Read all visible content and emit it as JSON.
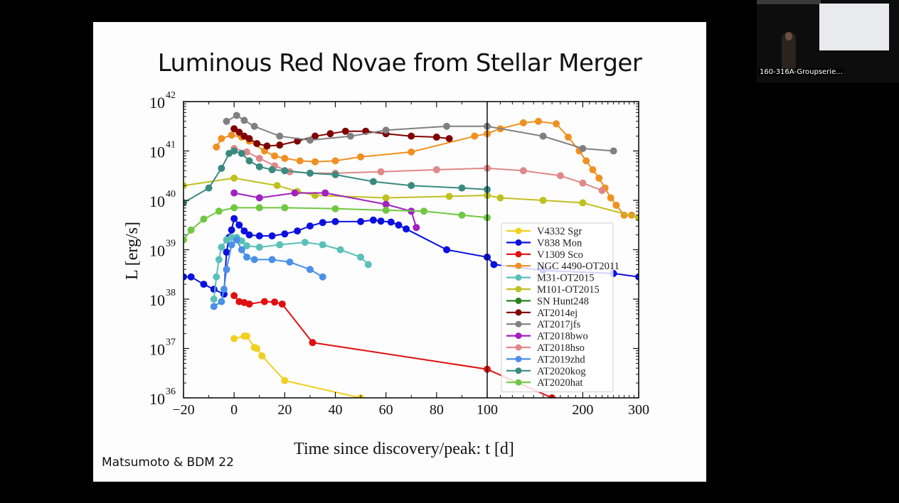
{
  "slide": {
    "title": "Luminous Red Novae from Stellar Merger",
    "credit": "Matsumoto & BDM 22"
  },
  "video_thumbnail": {
    "label": "160-316A-Groupserie..."
  },
  "chart_data": {
    "type": "line",
    "title": "Luminous Red Novae from Stellar Merger",
    "xlabel": "Time since discovery/peak: t [d]",
    "ylabel": "L [erg/s]",
    "xscale": "linear from -20 to 100, log from 100 to 300",
    "yscale": "log",
    "xlim": [
      -20,
      300
    ],
    "ylim": [
      1e+36,
      1e+42
    ],
    "x_ticks": [
      -20,
      0,
      20,
      40,
      60,
      80,
      100,
      200,
      300
    ],
    "y_ticks": [
      "10^36",
      "10^37",
      "10^38",
      "10^39",
      "10^40",
      "10^41",
      "10^42"
    ],
    "y_tick_exponents": [
      36,
      37,
      38,
      39,
      40,
      41,
      42
    ],
    "vertical_line_x": 100,
    "legend_position": "lower right",
    "series": [
      {
        "name": "V4332 Sgr",
        "color": "#f0d020",
        "points": [
          [
            0,
            37.2
          ],
          [
            4,
            37.25
          ],
          [
            5,
            37.25
          ],
          [
            8,
            37.02
          ],
          [
            9,
            37.0
          ],
          [
            11,
            36.85
          ],
          [
            20,
            36.35
          ],
          [
            50,
            36.0
          ]
        ]
      },
      {
        "name": "V838 Mon",
        "color": "#0a10e0",
        "points": [
          [
            -20,
            38.45
          ],
          [
            -17,
            38.45
          ],
          [
            -12,
            38.3
          ],
          [
            -8,
            38.2
          ],
          [
            -4,
            38.1
          ],
          [
            -3,
            38.95
          ],
          [
            -2,
            39.25
          ],
          [
            -1,
            39.4
          ],
          [
            0,
            39.63
          ],
          [
            2,
            39.5
          ],
          [
            4,
            39.38
          ],
          [
            6,
            39.3
          ],
          [
            10,
            39.28
          ],
          [
            15,
            39.28
          ],
          [
            20,
            39.32
          ],
          [
            25,
            39.38
          ],
          [
            30,
            39.48
          ],
          [
            35,
            39.55
          ],
          [
            40,
            39.57
          ],
          [
            50,
            39.57
          ],
          [
            55,
            39.6
          ],
          [
            58,
            39.58
          ],
          [
            62,
            39.56
          ],
          [
            65,
            39.5
          ],
          [
            68,
            39.42
          ],
          [
            84,
            39.0
          ],
          [
            100,
            38.85
          ],
          [
            105,
            38.7
          ],
          [
            150,
            38.58
          ],
          [
            250,
            38.52
          ],
          [
            300,
            38.45
          ]
        ]
      },
      {
        "name": "V1309 Sco",
        "color": "#e01010",
        "points": [
          [
            0,
            38.07
          ],
          [
            2,
            37.95
          ],
          [
            4,
            37.93
          ],
          [
            6,
            37.9
          ],
          [
            12,
            37.95
          ],
          [
            16,
            37.94
          ],
          [
            19,
            37.9
          ],
          [
            31,
            37.12
          ],
          [
            100,
            36.58
          ],
          [
            160,
            36.0
          ]
        ]
      },
      {
        "name": "NGC 4490-OT2011",
        "color": "#f09020",
        "points": [
          [
            -7,
            41.08
          ],
          [
            -5,
            41.25
          ],
          [
            -1,
            41.32
          ],
          [
            3,
            41.28
          ],
          [
            6,
            41.2
          ],
          [
            12,
            41.0
          ],
          [
            16,
            40.9
          ],
          [
            20,
            40.85
          ],
          [
            26,
            40.8
          ],
          [
            32,
            40.78
          ],
          [
            40,
            40.8
          ],
          [
            50,
            40.88
          ],
          [
            70,
            40.98
          ],
          [
            95,
            41.3
          ],
          [
            100,
            41.35
          ],
          [
            110,
            41.45
          ],
          [
            130,
            41.57
          ],
          [
            145,
            41.6
          ],
          [
            165,
            41.55
          ],
          [
            180,
            41.28
          ],
          [
            195,
            41.0
          ],
          [
            205,
            40.8
          ],
          [
            215,
            40.62
          ],
          [
            225,
            40.45
          ],
          [
            235,
            40.25
          ],
          [
            245,
            40.05
          ],
          [
            255,
            39.9
          ],
          [
            270,
            39.7
          ],
          [
            285,
            39.7
          ]
        ]
      },
      {
        "name": "M31-OT2015",
        "color": "#5ac0b8",
        "points": [
          [
            -8,
            38.0
          ],
          [
            -7,
            38.45
          ],
          [
            -6,
            38.8
          ],
          [
            -5,
            39.05
          ],
          [
            -3,
            39.2
          ],
          [
            -1,
            39.25
          ],
          [
            1,
            39.25
          ],
          [
            3,
            39.18
          ],
          [
            5,
            39.08
          ],
          [
            10,
            39.05
          ],
          [
            18,
            39.1
          ],
          [
            28,
            39.15
          ],
          [
            35,
            39.1
          ],
          [
            42,
            39.0
          ],
          [
            50,
            38.85
          ],
          [
            53,
            38.7
          ]
        ]
      },
      {
        "name": "M101-OT2015",
        "color": "#c0c020",
        "points": [
          [
            -20,
            40.3
          ],
          [
            0,
            40.45
          ],
          [
            17,
            40.3
          ],
          [
            25,
            40.18
          ],
          [
            32,
            40.1
          ],
          [
            60,
            40.05
          ],
          [
            85,
            40.08
          ],
          [
            100,
            40.1
          ],
          [
            110,
            40.05
          ],
          [
            150,
            40.0
          ],
          [
            200,
            39.95
          ],
          [
            300,
            39.65
          ]
        ]
      },
      {
        "name": "SN Hunt248",
        "color": "#2a8020",
        "points": []
      },
      {
        "name": "AT2014ej",
        "color": "#800000",
        "points": [
          [
            0,
            41.45
          ],
          [
            2,
            41.38
          ],
          [
            4,
            41.3
          ],
          [
            6,
            41.25
          ],
          [
            9,
            41.15
          ],
          [
            13,
            41.1
          ],
          [
            18,
            41.12
          ],
          [
            25,
            41.2
          ],
          [
            32,
            41.3
          ],
          [
            38,
            41.35
          ],
          [
            44,
            41.4
          ],
          [
            52,
            41.4
          ],
          [
            60,
            41.35
          ],
          [
            70,
            41.3
          ],
          [
            80,
            41.28
          ],
          [
            85,
            41.25
          ]
        ]
      },
      {
        "name": "AT2017jfs",
        "color": "#808080",
        "points": [
          [
            -3,
            41.6
          ],
          [
            1,
            41.72
          ],
          [
            4,
            41.62
          ],
          [
            8,
            41.5
          ],
          [
            18,
            41.3
          ],
          [
            30,
            41.22
          ],
          [
            46,
            41.3
          ],
          [
            60,
            41.42
          ],
          [
            84,
            41.5
          ],
          [
            100,
            41.5
          ],
          [
            150,
            41.3
          ],
          [
            200,
            41.05
          ],
          [
            250,
            41.0
          ]
        ]
      },
      {
        "name": "AT2018bwo",
        "color": "#a020c0",
        "points": [
          [
            0,
            40.15
          ],
          [
            10,
            40.05
          ],
          [
            24,
            40.15
          ],
          [
            36,
            40.15
          ],
          [
            60,
            39.92
          ],
          [
            70,
            39.78
          ],
          [
            72,
            39.45
          ]
        ]
      },
      {
        "name": "AT2018hso",
        "color": "#e08888",
        "points": [
          [
            0,
            41.05
          ],
          [
            5,
            40.98
          ],
          [
            10,
            40.85
          ],
          [
            16,
            40.7
          ],
          [
            22,
            40.58
          ],
          [
            30,
            40.55
          ],
          [
            40,
            40.55
          ],
          [
            58,
            40.58
          ],
          [
            80,
            40.62
          ],
          [
            100,
            40.65
          ],
          [
            130,
            40.6
          ],
          [
            170,
            40.5
          ],
          [
            200,
            40.35
          ],
          [
            230,
            40.2
          ]
        ]
      },
      {
        "name": "AT2019zhd",
        "color": "#4a90e8",
        "points": [
          [
            -8,
            37.85
          ],
          [
            -5,
            37.95
          ],
          [
            -4,
            38.2
          ],
          [
            -3,
            38.6
          ],
          [
            -1,
            39.1
          ],
          [
            1,
            39.2
          ],
          [
            3,
            39.0
          ],
          [
            5,
            38.85
          ],
          [
            8,
            38.8
          ],
          [
            15,
            38.8
          ],
          [
            22,
            38.75
          ],
          [
            30,
            38.6
          ],
          [
            35,
            38.45
          ]
        ]
      },
      {
        "name": "AT2020kog",
        "color": "#3a8a80",
        "points": [
          [
            -20,
            39.95
          ],
          [
            -10,
            40.25
          ],
          [
            -5,
            40.65
          ],
          [
            -2,
            40.95
          ],
          [
            0,
            41.0
          ],
          [
            3,
            40.95
          ],
          [
            6,
            40.8
          ],
          [
            10,
            40.68
          ],
          [
            15,
            40.62
          ],
          [
            20,
            40.6
          ],
          [
            30,
            40.55
          ],
          [
            40,
            40.52
          ],
          [
            55,
            40.38
          ],
          [
            70,
            40.3
          ],
          [
            90,
            40.25
          ],
          [
            100,
            40.22
          ]
        ]
      },
      {
        "name": "AT2020hat",
        "color": "#70c840",
        "points": [
          [
            -20,
            39.2
          ],
          [
            -17,
            39.4
          ],
          [
            -12,
            39.62
          ],
          [
            -6,
            39.78
          ],
          [
            0,
            39.85
          ],
          [
            10,
            39.85
          ],
          [
            20,
            39.85
          ],
          [
            40,
            39.83
          ],
          [
            60,
            39.8
          ],
          [
            75,
            39.78
          ],
          [
            90,
            39.7
          ],
          [
            100,
            39.65
          ]
        ]
      }
    ]
  }
}
